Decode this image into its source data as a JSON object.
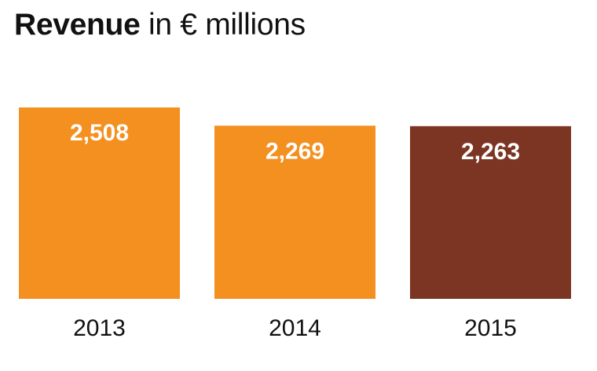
{
  "title": {
    "bold": "Revenue",
    "rest": " in € millions"
  },
  "chart_data": {
    "type": "bar",
    "title": "Revenue in € millions",
    "categories": [
      "2013",
      "2014",
      "2015"
    ],
    "values": [
      2508,
      2269,
      2263
    ],
    "value_labels": [
      "2,508",
      "2,269",
      "2,263"
    ],
    "bar_colors": [
      "#F39020",
      "#F39020",
      "#7C3522"
    ],
    "label_color": "#ffffff",
    "ylim": [
      0,
      2508
    ],
    "grid": false,
    "legend": "none"
  }
}
